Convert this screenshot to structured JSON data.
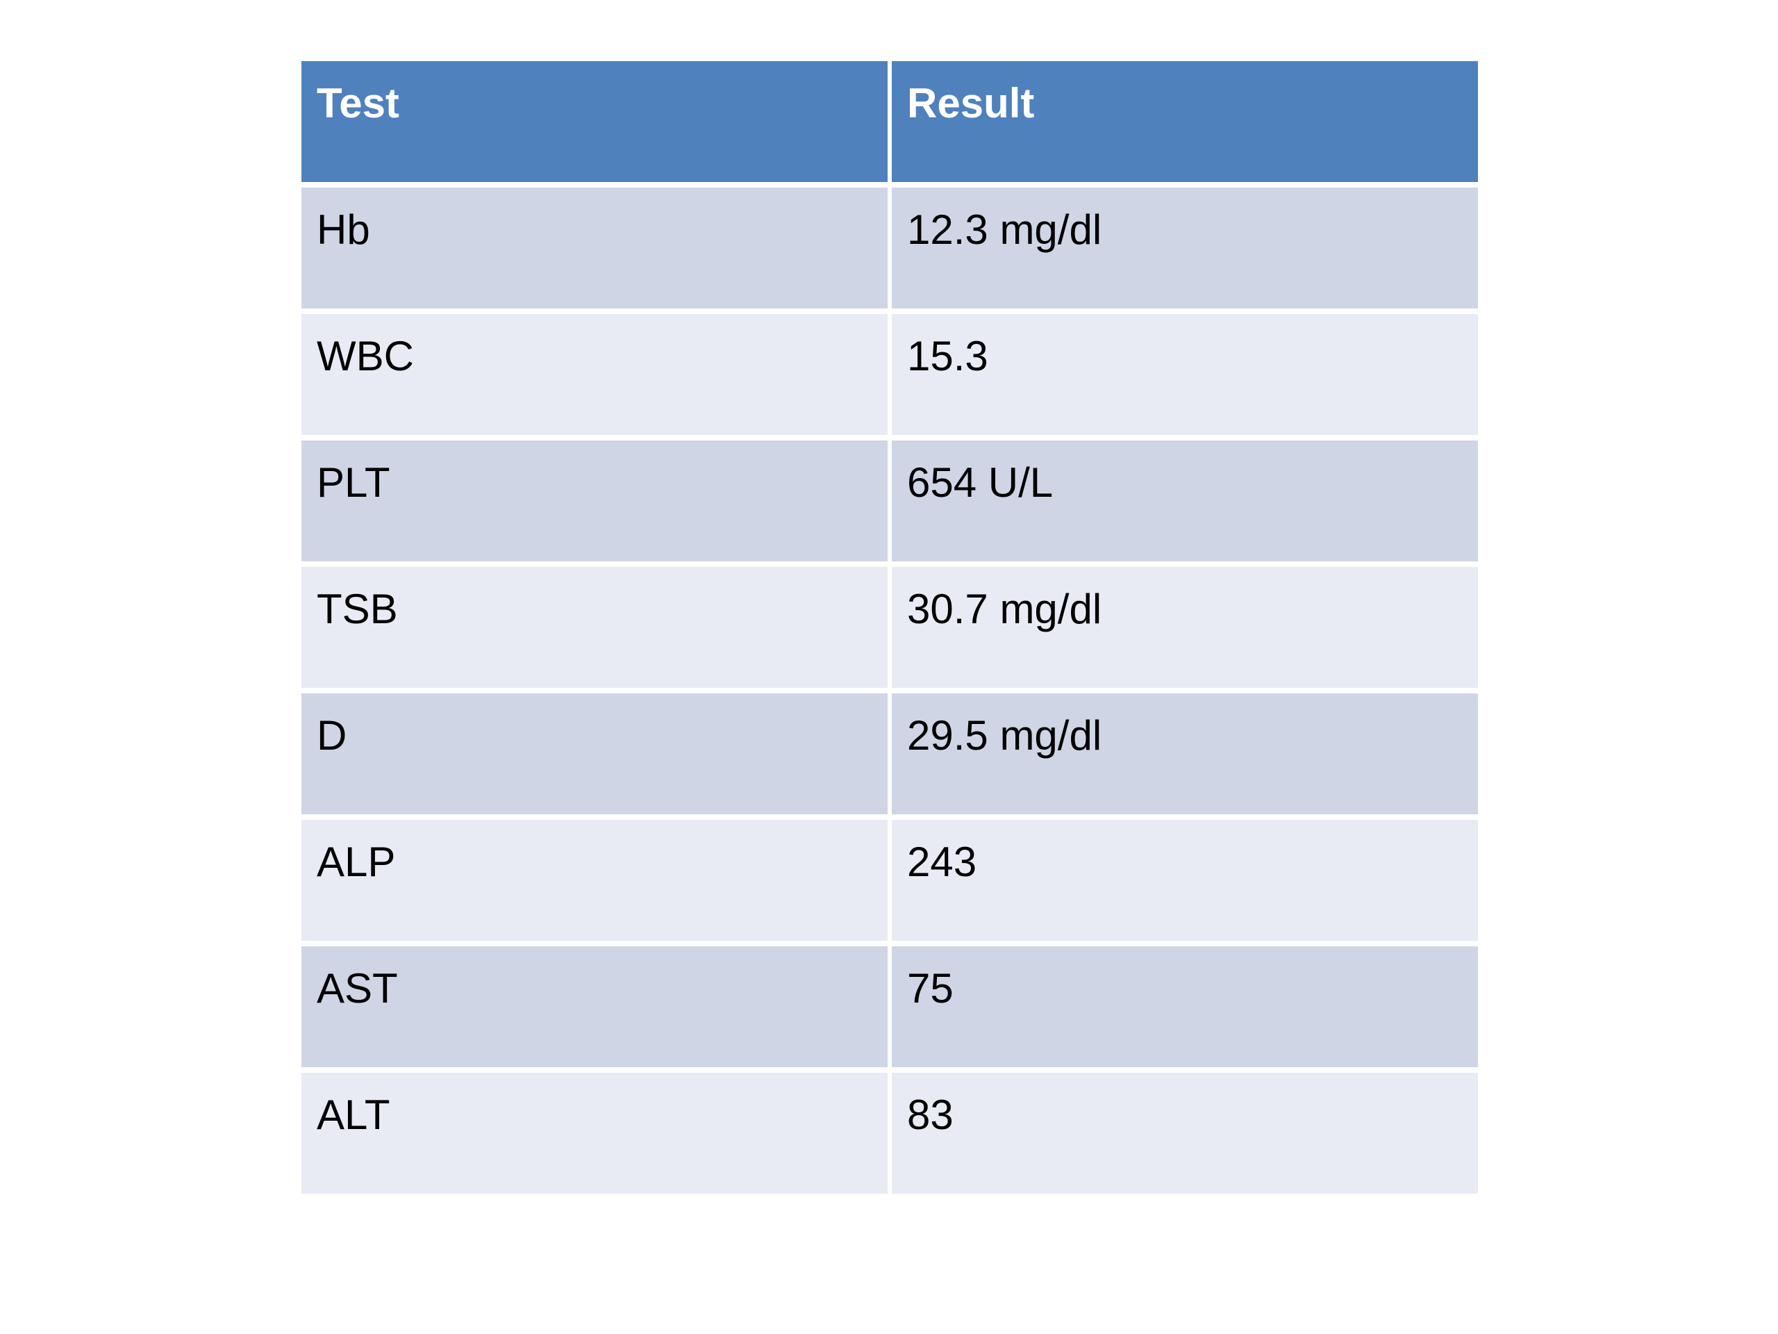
{
  "slide": {
    "background": "#FFFFFF"
  },
  "table": {
    "columns": [
      "Test",
      "Result"
    ],
    "rows": [
      {
        "test": "Hb",
        "result": "12.3 mg/dl"
      },
      {
        "test": "WBC",
        "result": "15.3"
      },
      {
        "test": "PLT",
        "result": "654 U/L"
      },
      {
        "test": "TSB",
        "result": "30.7 mg/dl"
      },
      {
        "test": "D",
        "result": "29.5 mg/dl"
      },
      {
        "test": "ALP",
        "result": "243"
      },
      {
        "test": "AST",
        "result": "75"
      },
      {
        "test": "ALT",
        "result": "83"
      }
    ],
    "colors": {
      "header_bg": "#4F81BD",
      "header_fg": "#FFFFFF",
      "band_dark": "#CFD5E4",
      "band_light": "#E9EBF4",
      "body_fg": "#000000",
      "separator": "#FFFFFF"
    }
  }
}
